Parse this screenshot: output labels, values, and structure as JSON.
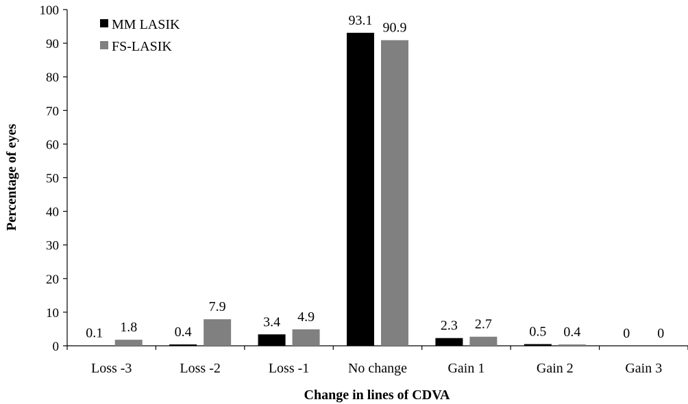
{
  "chart_data": {
    "type": "bar",
    "xlabel": "Change in lines of CDVA",
    "ylabel": "Percentage of eyes",
    "ylim": [
      0,
      100
    ],
    "yticks": [
      0,
      10,
      20,
      30,
      40,
      50,
      60,
      70,
      80,
      90,
      100
    ],
    "grid": false,
    "legend_position": "top-left",
    "categories": [
      "Loss -3",
      "Loss -2",
      "Loss -1",
      "No change",
      "Gain 1",
      "Gain 2",
      "Gain 3"
    ],
    "series": [
      {
        "name": "MM LASIK",
        "color": "#000000",
        "values": [
          0.1,
          0.4,
          3.4,
          93.1,
          2.3,
          0.5,
          0
        ],
        "labels": [
          "0.1",
          "0.4",
          "3.4",
          "93.1",
          "2.3",
          "0.5",
          "0"
        ]
      },
      {
        "name": "FS-LASIK",
        "color": "#808080",
        "values": [
          1.8,
          7.9,
          4.9,
          90.9,
          2.7,
          0.4,
          0
        ],
        "labels": [
          "1.8",
          "7.9",
          "4.9",
          "90.9",
          "2.7",
          "0.4",
          "0"
        ]
      }
    ]
  }
}
